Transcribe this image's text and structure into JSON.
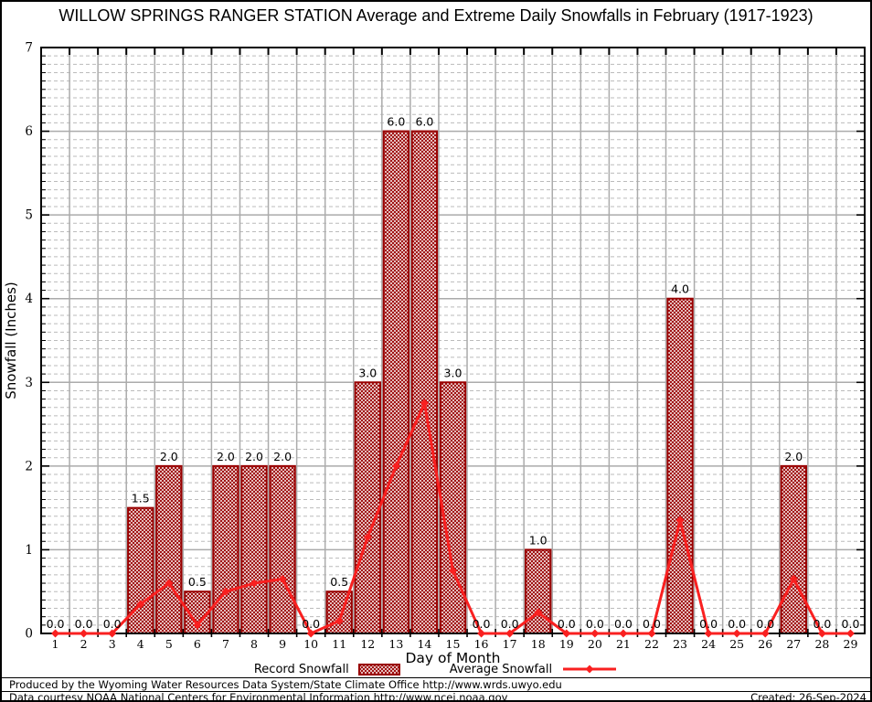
{
  "title": "WILLOW SPRINGS RANGER STATION Average and Extreme Daily Snowfalls in February (1917-1923)",
  "colors": {
    "bar": "#990000",
    "line": "#f92020",
    "grid_major": "#ababab",
    "grid_minor": "#bbbbbb",
    "axis": "#000000",
    "background": "#ffffff"
  },
  "chart_data": {
    "type": "bar",
    "title": "WILLOW SPRINGS RANGER STATION Average and Extreme Daily Snowfalls in February (1917-1923)",
    "xlabel": "Day of Month",
    "ylabel": "Snowfall (Inches)",
    "ylim": [
      0,
      7
    ],
    "y_major_step": 1,
    "y_minor_step": 0.1,
    "grid": true,
    "legend_position": "bottom",
    "point_labels_format": "one decimal, every day labeled",
    "categories": [
      1,
      2,
      3,
      4,
      5,
      6,
      7,
      8,
      9,
      10,
      11,
      12,
      13,
      14,
      15,
      16,
      17,
      18,
      19,
      20,
      21,
      22,
      23,
      24,
      25,
      26,
      27,
      28,
      29
    ],
    "series": [
      {
        "name": "Record Snowfall",
        "type": "bar",
        "color": "#990000",
        "fill": "crosshatch",
        "values": [
          0.0,
          0.0,
          0.0,
          1.5,
          2.0,
          0.5,
          2.0,
          2.0,
          2.0,
          0.0,
          0.5,
          3.0,
          6.0,
          6.0,
          3.0,
          0.0,
          0.0,
          1.0,
          0.0,
          0.0,
          0.0,
          0.0,
          4.0,
          0.0,
          0.0,
          0.0,
          2.0,
          0.0,
          0.0
        ]
      },
      {
        "name": "Average Snowfall",
        "type": "line",
        "color": "#f92020",
        "marker": "diamond",
        "values": [
          0.0,
          0.0,
          0.0,
          0.35,
          0.6,
          0.1,
          0.5,
          0.6,
          0.65,
          0.0,
          0.15,
          1.15,
          2.0,
          2.75,
          0.75,
          0.0,
          0.0,
          0.25,
          0.0,
          0.0,
          0.0,
          0.0,
          1.35,
          0.0,
          0.0,
          0.0,
          0.65,
          0.0,
          0.0
        ]
      }
    ]
  },
  "legend": {
    "record_label": "Record Snowfall",
    "average_label": "Average Snowfall"
  },
  "footer": {
    "line1": "Produced by the Wyoming Water Resources Data System/State Climate Office http://www.wrds.uwyo.edu",
    "line2": "Data courtesy NOAA National Centers for Environmental Information http://www.ncei.noaa.gov",
    "created": "Created: 26-Sep-2024"
  }
}
